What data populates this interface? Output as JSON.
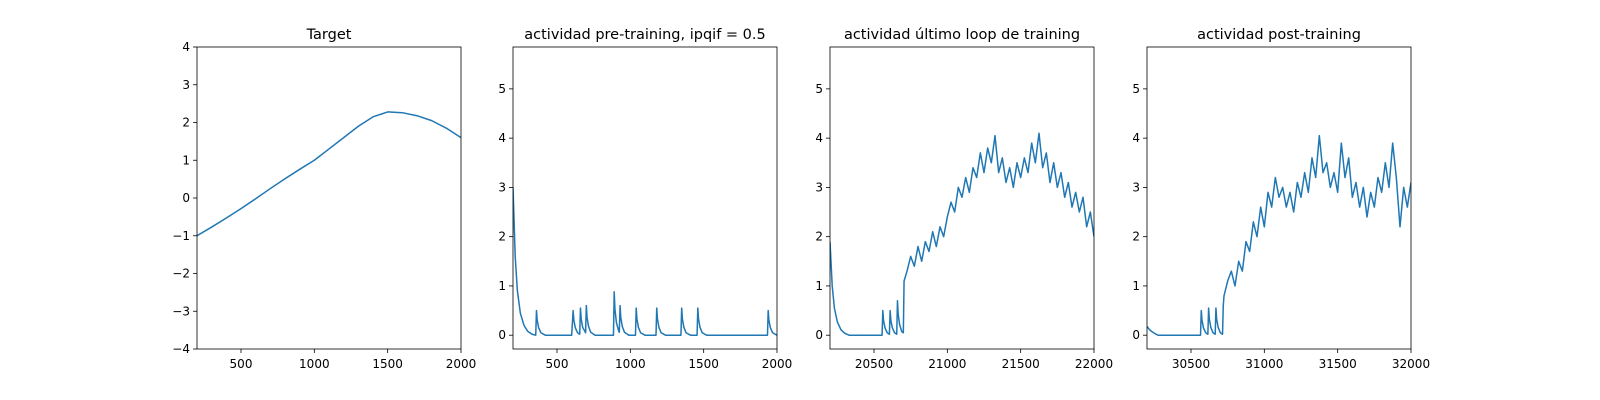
{
  "chart_data": [
    {
      "type": "line",
      "title": "Target",
      "color": "#1f77b4",
      "x": [
        200,
        300,
        400,
        500,
        600,
        700,
        800,
        900,
        1000,
        1100,
        1200,
        1300,
        1400,
        1500,
        1600,
        1700,
        1800,
        1900,
        2000
      ],
      "values": [
        -1,
        -0.77,
        -0.53,
        -0.28,
        -0.02,
        0.25,
        0.51,
        0.76,
        1.0,
        1.3,
        1.6,
        1.9,
        2.15,
        2.28,
        2.26,
        2.18,
        2.05,
        1.85,
        1.6
      ],
      "xlim": [
        200,
        2000
      ],
      "ylim": [
        -4,
        4
      ],
      "xticks": [
        500,
        1000,
        1500,
        2000
      ],
      "yticks": [
        {
          "value": -4,
          "label": "−4"
        },
        {
          "value": -3,
          "label": "−3"
        },
        {
          "value": -2,
          "label": "−2"
        },
        {
          "value": -1,
          "label": "−1"
        },
        0,
        1,
        2,
        3,
        4
      ]
    },
    {
      "type": "line",
      "title": "actividad pre-training, ipqif = 0.5",
      "color": "#1f77b4",
      "x": [
        200,
        215,
        230,
        250,
        275,
        300,
        330,
        355,
        360,
        365,
        375,
        390,
        420,
        600,
        610,
        615,
        625,
        640,
        655,
        660,
        665,
        675,
        695,
        700,
        705,
        715,
        730,
        760,
        885,
        890,
        895,
        905,
        920,
        925,
        930,
        935,
        945,
        960,
        990,
        1035,
        1040,
        1045,
        1055,
        1070,
        1100,
        1175,
        1180,
        1185,
        1195,
        1210,
        1240,
        1345,
        1350,
        1355,
        1365,
        1380,
        1410,
        1455,
        1460,
        1465,
        1475,
        1490,
        1520,
        1935,
        1940,
        1945,
        1955,
        1970,
        2000
      ],
      "values": [
        3.0,
        1.6,
        0.9,
        0.45,
        0.2,
        0.08,
        0.02,
        0,
        0.5,
        0.3,
        0.15,
        0.05,
        0,
        0,
        0.5,
        0.3,
        0.15,
        0.05,
        0.02,
        0.55,
        0.33,
        0.16,
        0.05,
        0.6,
        0.36,
        0.18,
        0.06,
        0,
        0,
        0.88,
        0.53,
        0.26,
        0.09,
        0.06,
        0.6,
        0.36,
        0.18,
        0.06,
        0,
        0,
        0.55,
        0.33,
        0.16,
        0.05,
        0,
        0,
        0.55,
        0.33,
        0.16,
        0.05,
        0,
        0,
        0.55,
        0.33,
        0.16,
        0.05,
        0,
        0,
        0.55,
        0.33,
        0.16,
        0.05,
        0,
        0,
        0.5,
        0.3,
        0.15,
        0.05,
        0
      ],
      "xlim": [
        200,
        2000
      ],
      "ylim": [
        -0.28,
        5.85
      ],
      "xticks": [
        500,
        1000,
        1500,
        2000
      ],
      "yticks": [
        0,
        1,
        2,
        3,
        4,
        5
      ]
    },
    {
      "type": "line",
      "title": "actividad último loop de training",
      "color": "#1f77b4",
      "x": [
        20200,
        20215,
        20230,
        20250,
        20275,
        20300,
        20330,
        20555,
        20560,
        20565,
        20575,
        20590,
        20605,
        20610,
        20615,
        20625,
        20640,
        20655,
        20660,
        20665,
        20675,
        20690,
        20700,
        20705,
        20725,
        20750,
        20775,
        20800,
        20825,
        20850,
        20875,
        20900,
        20925,
        20950,
        20975,
        21000,
        21025,
        21050,
        21075,
        21100,
        21125,
        21150,
        21175,
        21200,
        21225,
        21250,
        21275,
        21300,
        21325,
        21350,
        21375,
        21400,
        21425,
        21450,
        21475,
        21500,
        21525,
        21550,
        21575,
        21600,
        21625,
        21650,
        21675,
        21700,
        21725,
        21750,
        21775,
        21800,
        21825,
        21850,
        21875,
        21900,
        21925,
        21950,
        21975,
        22000
      ],
      "values": [
        1.9,
        1.0,
        0.55,
        0.27,
        0.11,
        0.04,
        0,
        0,
        0.5,
        0.3,
        0.15,
        0.05,
        0.02,
        0.5,
        0.3,
        0.15,
        0.05,
        0.02,
        0.7,
        0.42,
        0.21,
        0.07,
        0.05,
        1.1,
        1.3,
        1.6,
        1.4,
        1.8,
        1.5,
        1.9,
        1.7,
        2.1,
        1.8,
        2.2,
        2.0,
        2.4,
        2.7,
        2.5,
        3.0,
        2.8,
        3.2,
        2.9,
        3.4,
        3.2,
        3.7,
        3.3,
        3.8,
        3.5,
        4.05,
        3.3,
        3.6,
        3.1,
        3.4,
        3.0,
        3.5,
        3.2,
        3.6,
        3.3,
        3.9,
        3.5,
        4.1,
        3.4,
        3.7,
        3.1,
        3.5,
        3.0,
        3.3,
        2.8,
        3.1,
        2.6,
        2.9,
        2.5,
        2.8,
        2.2,
        2.5,
        2.0
      ],
      "xlim": [
        20200,
        22000
      ],
      "ylim": [
        -0.28,
        5.85
      ],
      "xticks": [
        20500,
        21000,
        21500,
        22000
      ],
      "yticks": [
        0,
        1,
        2,
        3,
        4,
        5
      ]
    },
    {
      "type": "line",
      "title": "actividad post-training",
      "color": "#1f77b4",
      "x": [
        30200,
        30215,
        30230,
        30250,
        30275,
        30565,
        30570,
        30575,
        30585,
        30600,
        30615,
        30620,
        30625,
        30635,
        30650,
        30665,
        30670,
        30675,
        30685,
        30700,
        30715,
        30720,
        30725,
        30750,
        30775,
        30800,
        30825,
        30850,
        30875,
        30900,
        30925,
        30950,
        30975,
        31000,
        31025,
        31050,
        31075,
        31100,
        31125,
        31150,
        31175,
        31200,
        31225,
        31250,
        31275,
        31300,
        31325,
        31350,
        31375,
        31400,
        31425,
        31450,
        31475,
        31500,
        31525,
        31550,
        31575,
        31600,
        31625,
        31650,
        31675,
        31700,
        31725,
        31750,
        31775,
        31800,
        31825,
        31850,
        31875,
        31900,
        31925,
        31950,
        31975,
        32000
      ],
      "values": [
        0.18,
        0.12,
        0.08,
        0.04,
        0,
        0,
        0.5,
        0.3,
        0.15,
        0.05,
        0.02,
        0.55,
        0.33,
        0.16,
        0.05,
        0.02,
        0.55,
        0.33,
        0.16,
        0.05,
        0.02,
        0.6,
        0.8,
        1.1,
        1.3,
        1.0,
        1.5,
        1.3,
        1.9,
        1.7,
        2.3,
        2.0,
        2.6,
        2.2,
        2.9,
        2.6,
        3.2,
        2.8,
        3.0,
        2.6,
        2.9,
        2.5,
        3.1,
        2.8,
        3.3,
        2.9,
        3.6,
        3.2,
        4.05,
        3.3,
        3.5,
        3.0,
        3.3,
        2.9,
        3.9,
        3.2,
        3.6,
        2.8,
        3.1,
        2.6,
        3.0,
        2.4,
        2.9,
        2.6,
        3.2,
        2.9,
        3.5,
        3.0,
        3.9,
        3.2,
        2.2,
        3.0,
        2.6,
        3.1
      ],
      "xlim": [
        30200,
        32000
      ],
      "ylim": [
        -0.28,
        5.85
      ],
      "xticks": [
        30500,
        31000,
        31500,
        32000
      ],
      "yticks": [
        0,
        1,
        2,
        3,
        4,
        5
      ]
    }
  ]
}
